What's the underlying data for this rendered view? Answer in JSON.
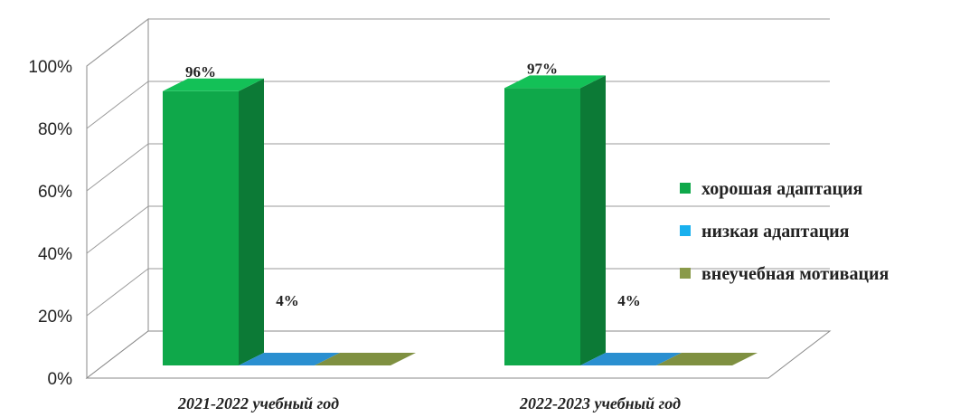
{
  "chart_data": {
    "type": "bar",
    "categories": [
      "2021-2022 учебный год",
      "2022-2023 учебный год"
    ],
    "series": [
      {
        "name": "хорошая адаптация",
        "values": [
          96,
          97
        ],
        "labels": [
          "96%",
          "97%"
        ],
        "color": "#0fa84a",
        "side_color": "#0c7a36",
        "top_color": "#13c157"
      },
      {
        "name": "низкая адаптация",
        "values": [
          4,
          4
        ],
        "labels": [
          "4%",
          "4%"
        ],
        "color": "#19b0ee",
        "side_color": "#1080b8",
        "top_color": "#2a8fd0"
      },
      {
        "name": "внеучебная мотивация",
        "values": [
          0,
          0
        ],
        "labels": [
          "",
          ""
        ],
        "color": "#8a9a4a",
        "side_color": "#6f7d3a",
        "top_color": "#7f9041"
      }
    ],
    "yticks": [
      "0%",
      "20%",
      "40%",
      "60%",
      "80%",
      "100%"
    ],
    "ylim": [
      0,
      100
    ],
    "grid": true,
    "legend": "right"
  }
}
